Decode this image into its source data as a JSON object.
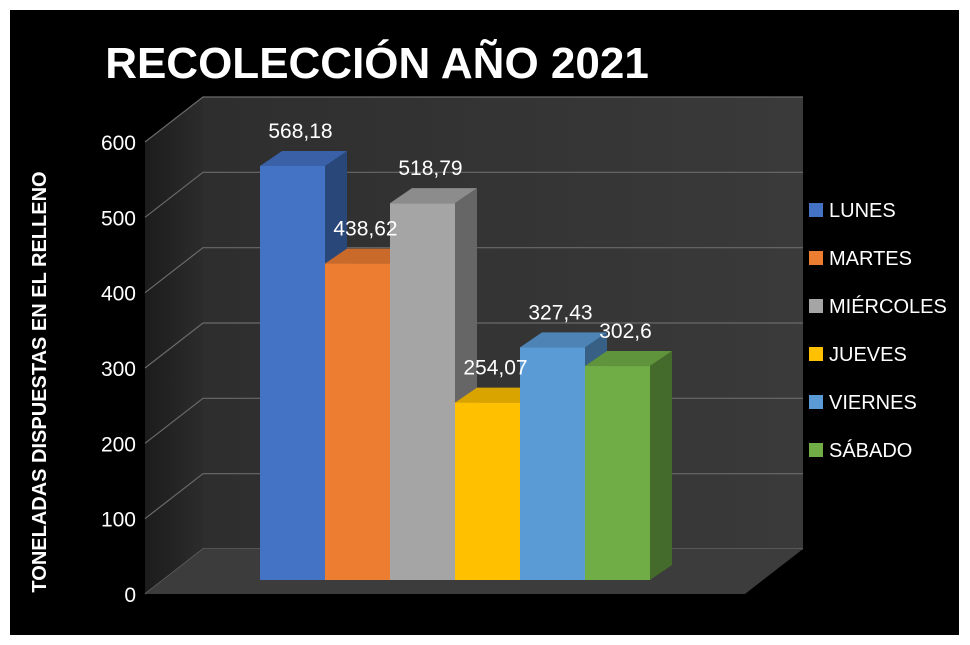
{
  "chart_data": {
    "type": "bar",
    "title": "RECOLECCIÓN  AÑO 2021",
    "ylabel": "TONELADAS DISPUESTAS EN EL RELLENO",
    "xlabel": "",
    "ylim": [
      0,
      600
    ],
    "yticks": [
      0,
      100,
      200,
      300,
      400,
      500,
      600
    ],
    "grid": true,
    "legend_position": "right",
    "series": [
      {
        "name": "LUNES",
        "value": 568.18,
        "label": "568,18",
        "color": "#4472c4"
      },
      {
        "name": "MARTES",
        "value": 438.62,
        "label": "438,62",
        "color": "#ed7d31"
      },
      {
        "name": "MIÉRCOLES",
        "value": 518.79,
        "label": "518,79",
        "color": "#a5a5a5"
      },
      {
        "name": "JUEVES",
        "value": 254.07,
        "label": "254,07",
        "color": "#ffc000"
      },
      {
        "name": "VIERNES",
        "value": 327.43,
        "label": "327,43",
        "color": "#5b9bd5"
      },
      {
        "name": "SÁBADO",
        "value": 302.6,
        "label": "302,6",
        "color": "#70ad47"
      }
    ]
  }
}
